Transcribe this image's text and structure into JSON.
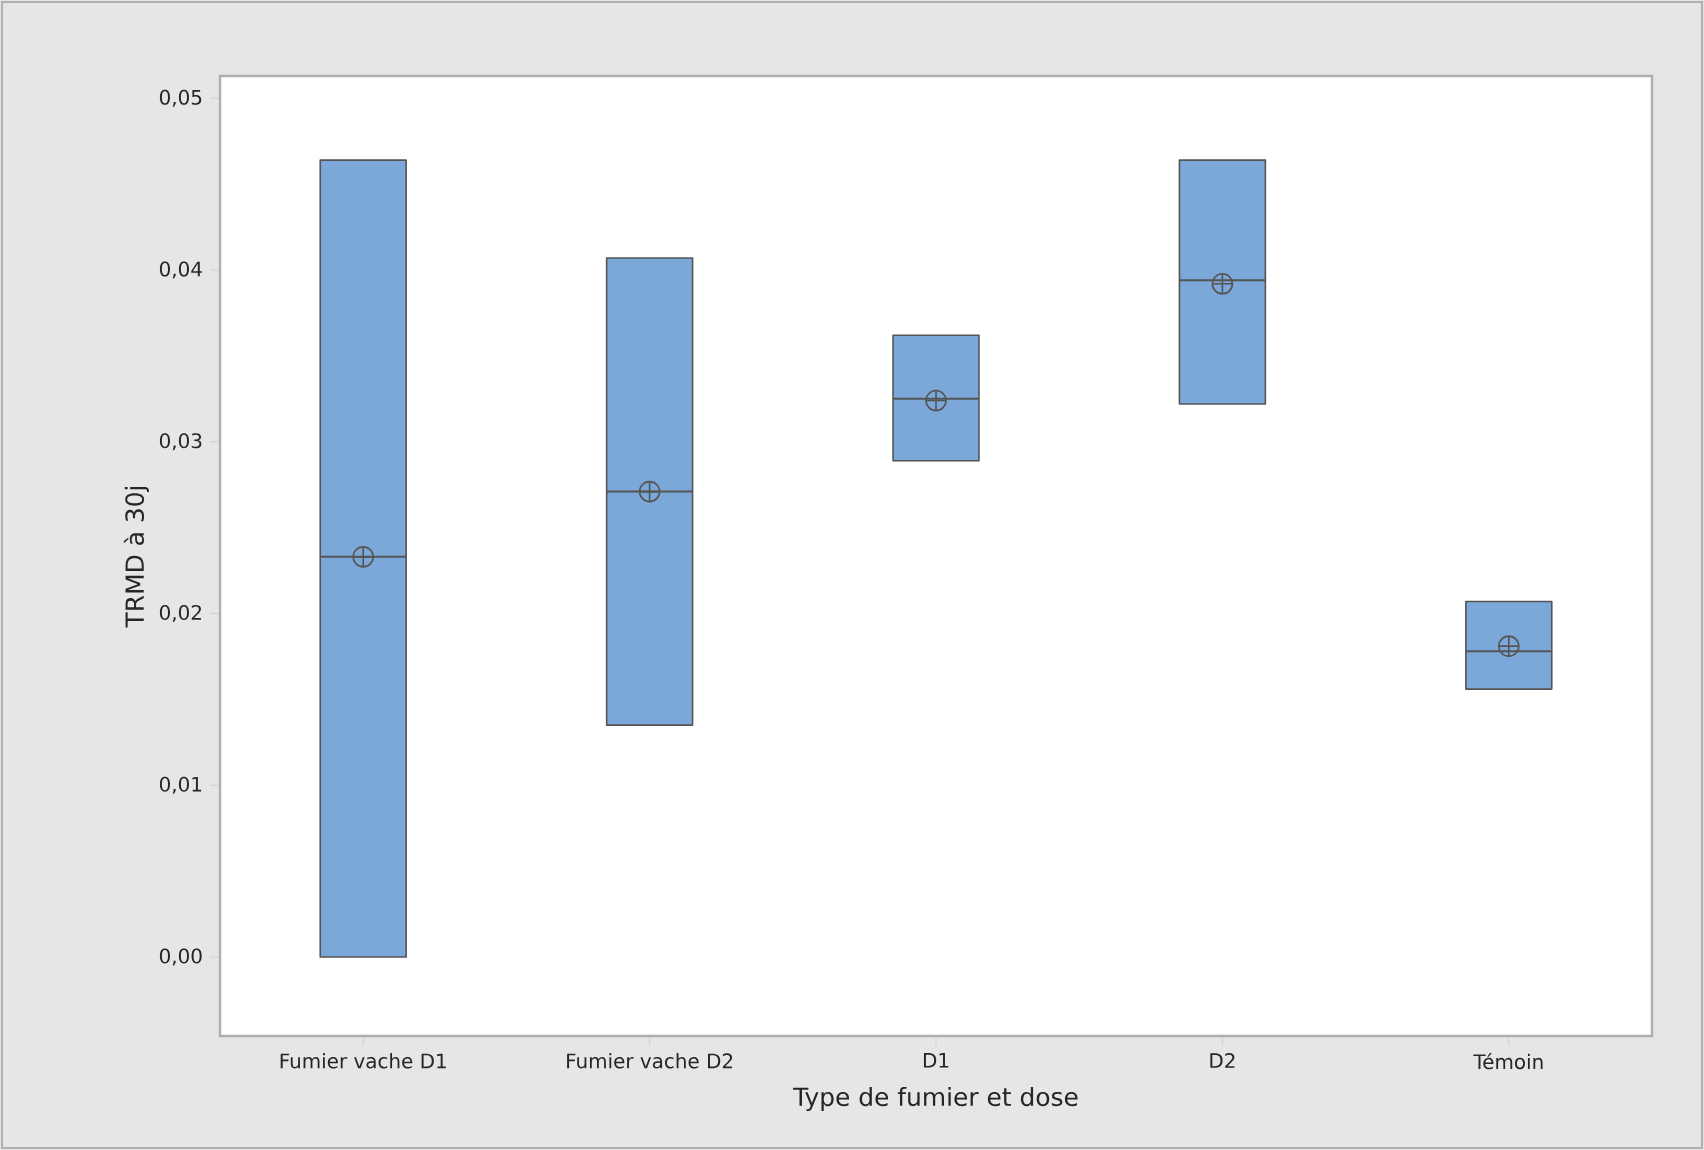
{
  "chart_data": {
    "type": "box",
    "xlabel": "Type de fumier et dose",
    "ylabel": "TRMD à 30j",
    "categories": [
      "Fumier vache D1",
      "Fumier vache D2",
      "D1",
      "D2",
      "Témoin"
    ],
    "series": [
      {
        "color": "#7ba7d9",
        "boxes": [
          {
            "low": 0.0,
            "q1": 0.0,
            "median": 0.0233,
            "q3": 0.0464,
            "high": 0.0464,
            "mean": 0.0233
          },
          {
            "low": 0.0135,
            "q1": 0.0135,
            "median": 0.0271,
            "q3": 0.0407,
            "high": 0.0407,
            "mean": 0.0271
          },
          {
            "low": 0.0289,
            "q1": 0.0289,
            "median": 0.0325,
            "q3": 0.0362,
            "high": 0.0362,
            "mean": 0.0324
          },
          {
            "low": 0.0322,
            "q1": 0.0322,
            "median": 0.0394,
            "q3": 0.0464,
            "high": 0.0464,
            "mean": 0.0392
          },
          {
            "low": 0.0156,
            "q1": 0.0156,
            "median": 0.0178,
            "q3": 0.0207,
            "high": 0.0207,
            "mean": 0.0181
          }
        ]
      }
    ],
    "ylim": [
      -0.0046,
      0.0513
    ],
    "yticks": [
      {
        "value": 0,
        "label": "0,00"
      },
      {
        "value": 0.01,
        "label": "0,01"
      },
      {
        "value": 0.02,
        "label": "0,02"
      },
      {
        "value": 0.03,
        "label": "0,03"
      },
      {
        "value": 0.04,
        "label": "0,04"
      },
      {
        "value": 0.05,
        "label": "0,05"
      }
    ]
  }
}
